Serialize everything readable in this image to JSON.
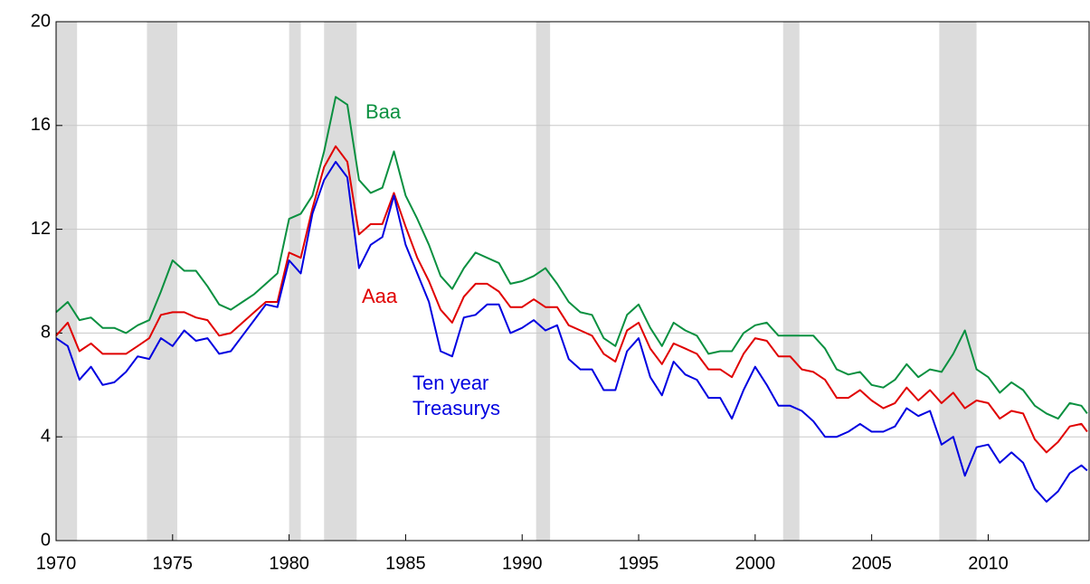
{
  "chart_data": {
    "type": "line",
    "x": [
      1970,
      1970.5,
      1971,
      1971.5,
      1972,
      1972.5,
      1973,
      1973.5,
      1974,
      1974.5,
      1975,
      1975.5,
      1976,
      1976.5,
      1977,
      1977.5,
      1978,
      1978.5,
      1979,
      1979.5,
      1980,
      1980.5,
      1981,
      1981.5,
      1982,
      1982.5,
      1983,
      1983.5,
      1984,
      1984.5,
      1985,
      1985.5,
      1986,
      1986.5,
      1987,
      1987.5,
      1988,
      1988.5,
      1989,
      1989.5,
      1990,
      1990.5,
      1991,
      1991.5,
      1992,
      1992.5,
      1993,
      1993.5,
      1994,
      1994.5,
      1995,
      1995.5,
      1996,
      1996.5,
      1997,
      1997.5,
      1998,
      1998.5,
      1999,
      1999.5,
      2000,
      2000.5,
      2001,
      2001.5,
      2002,
      2002.5,
      2003,
      2003.5,
      2004,
      2004.5,
      2005,
      2005.5,
      2006,
      2006.5,
      2007,
      2007.5,
      2008,
      2008.5,
      2009,
      2009.5,
      2010,
      2010.5,
      2011,
      2011.5,
      2012,
      2012.5,
      2013,
      2013.5,
      2014,
      2014.25
    ],
    "series": [
      {
        "name": "Baa",
        "color": "#0a9040",
        "values": [
          8.8,
          9.2,
          8.5,
          8.6,
          8.2,
          8.2,
          8.0,
          8.3,
          8.5,
          9.6,
          10.8,
          10.4,
          10.4,
          9.8,
          9.1,
          8.9,
          9.2,
          9.5,
          9.9,
          10.3,
          12.4,
          12.6,
          13.3,
          15.0,
          17.1,
          16.8,
          13.9,
          13.4,
          13.6,
          15.0,
          13.3,
          12.4,
          11.4,
          10.2,
          9.7,
          10.5,
          11.1,
          10.9,
          10.7,
          9.9,
          10.0,
          10.2,
          10.5,
          9.9,
          9.2,
          8.8,
          8.7,
          7.8,
          7.5,
          8.7,
          9.1,
          8.2,
          7.5,
          8.4,
          8.1,
          7.9,
          7.2,
          7.3,
          7.3,
          8.0,
          8.3,
          8.4,
          7.9,
          7.9,
          7.9,
          7.9,
          7.4,
          6.6,
          6.4,
          6.5,
          6.0,
          5.9,
          6.2,
          6.8,
          6.3,
          6.6,
          6.5,
          7.2,
          8.1,
          6.6,
          6.3,
          5.7,
          6.1,
          5.8,
          5.2,
          4.9,
          4.7,
          5.3,
          5.2,
          4.9
        ]
      },
      {
        "name": "Aaa",
        "color": "#e00000",
        "values": [
          7.9,
          8.4,
          7.3,
          7.6,
          7.2,
          7.2,
          7.2,
          7.5,
          7.8,
          8.7,
          8.8,
          8.8,
          8.6,
          8.5,
          7.9,
          8.0,
          8.4,
          8.8,
          9.2,
          9.2,
          11.1,
          10.9,
          12.8,
          14.4,
          15.2,
          14.6,
          11.8,
          12.2,
          12.2,
          13.4,
          12.1,
          10.9,
          10.0,
          8.9,
          8.4,
          9.4,
          9.9,
          9.9,
          9.6,
          9.0,
          9.0,
          9.3,
          9.0,
          9.0,
          8.3,
          8.1,
          7.9,
          7.2,
          6.9,
          8.1,
          8.4,
          7.4,
          6.8,
          7.6,
          7.4,
          7.2,
          6.6,
          6.6,
          6.3,
          7.2,
          7.8,
          7.7,
          7.1,
          7.1,
          6.6,
          6.5,
          6.2,
          5.5,
          5.5,
          5.8,
          5.4,
          5.1,
          5.3,
          5.9,
          5.4,
          5.8,
          5.3,
          5.7,
          5.1,
          5.4,
          5.3,
          4.7,
          5.0,
          4.9,
          3.9,
          3.4,
          3.8,
          4.4,
          4.5,
          4.2
        ]
      },
      {
        "name": "Ten year Treasurys",
        "color": "#0000e0",
        "values": [
          7.8,
          7.5,
          6.2,
          6.7,
          6.0,
          6.1,
          6.5,
          7.1,
          7.0,
          7.8,
          7.5,
          8.1,
          7.7,
          7.8,
          7.2,
          7.3,
          7.9,
          8.5,
          9.1,
          9.0,
          10.8,
          10.3,
          12.6,
          13.9,
          14.6,
          14.0,
          10.5,
          11.4,
          11.7,
          13.3,
          11.4,
          10.3,
          9.2,
          7.3,
          7.1,
          8.6,
          8.7,
          9.1,
          9.1,
          8.0,
          8.2,
          8.5,
          8.1,
          8.3,
          7.0,
          6.6,
          6.6,
          5.8,
          5.8,
          7.3,
          7.8,
          6.3,
          5.6,
          6.9,
          6.4,
          6.2,
          5.5,
          5.5,
          4.7,
          5.8,
          6.7,
          6.0,
          5.2,
          5.2,
          5.0,
          4.6,
          4.0,
          4.0,
          4.2,
          4.5,
          4.2,
          4.2,
          4.4,
          5.1,
          4.8,
          5.0,
          3.7,
          4.0,
          2.5,
          3.6,
          3.7,
          3.0,
          3.4,
          3.0,
          2.0,
          1.5,
          1.9,
          2.6,
          2.9,
          2.7
        ]
      }
    ],
    "recessions": [
      [
        1970.0,
        1970.9
      ],
      [
        1973.9,
        1975.2
      ],
      [
        1980.0,
        1980.5
      ],
      [
        1981.5,
        1982.9
      ],
      [
        1990.6,
        1991.2
      ],
      [
        2001.2,
        2001.9
      ],
      [
        2007.9,
        2009.5
      ]
    ],
    "recession_color": "#dcdcdc",
    "xlim": [
      1970,
      2014.33
    ],
    "xticks": [
      1970,
      1975,
      1980,
      1985,
      1990,
      1995,
      2000,
      2005,
      2010
    ],
    "ylim": [
      0,
      20
    ],
    "yticks": [
      0,
      4,
      8,
      12,
      16,
      20
    ],
    "grid": true
  }
}
